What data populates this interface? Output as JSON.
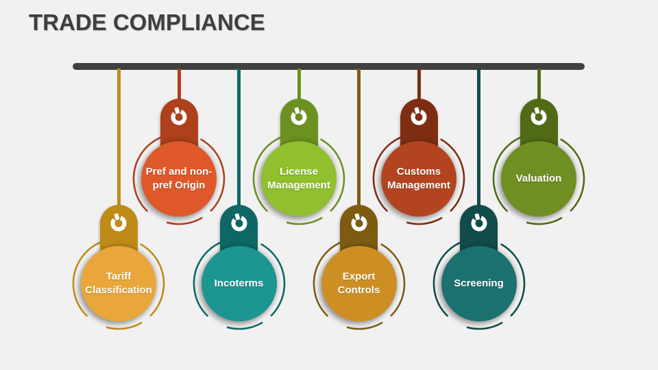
{
  "slide": {
    "title": "TRADE COMPLIANCE",
    "title_color": "#3F3F3F",
    "background_color": "#F1F1F2",
    "bar_color": "#404040",
    "label_text_color": "#FFFFFF"
  },
  "pendants": [
    {
      "id": "tariff-classification",
      "label": "Tariff\nClassification",
      "row": "lower",
      "circle_color": "#E9A63A",
      "dark_color": "#BF8B17"
    },
    {
      "id": "pref-and-non-pref-origin",
      "label": "Pref and non-\npref Origin",
      "row": "upper",
      "circle_color": "#DF5829",
      "dark_color": "#AE401C"
    },
    {
      "id": "incoterms",
      "label": "Incoterms",
      "row": "lower",
      "circle_color": "#1D9591",
      "dark_color": "#0F6765"
    },
    {
      "id": "license-management",
      "label": "License\nManagement",
      "row": "upper",
      "circle_color": "#90C02E",
      "dark_color": "#6C9120"
    },
    {
      "id": "export-controls",
      "label": "Export\nControls",
      "row": "lower",
      "circle_color": "#CD8F24",
      "dark_color": "#7D5B11"
    },
    {
      "id": "customs-management",
      "label": "Customs\nManagement",
      "row": "upper",
      "circle_color": "#B2441F",
      "dark_color": "#7F2D12"
    },
    {
      "id": "screening",
      "label": "Screening",
      "row": "lower",
      "circle_color": "#1A716E",
      "dark_color": "#114C4A"
    },
    {
      "id": "valuation",
      "label": "Valuation",
      "row": "upper",
      "circle_color": "#6F8F22",
      "dark_color": "#506A15"
    }
  ],
  "icon": {
    "name": "power-icon",
    "color": "#FFFFFF"
  },
  "layout_x_centers": [
    173,
    261,
    348.5,
    436,
    523.5,
    611,
    698.5,
    786
  ]
}
